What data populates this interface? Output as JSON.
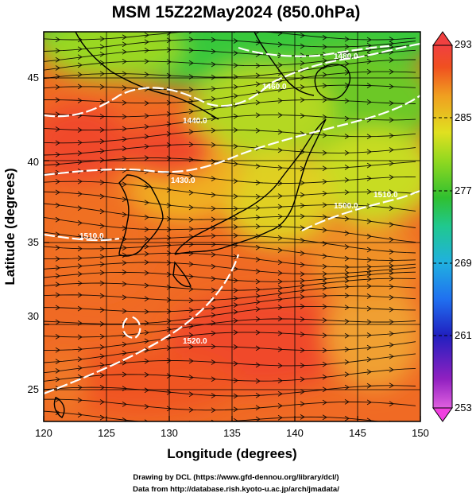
{
  "title": "MSM 15Z22May2024 (850.0hPa)",
  "xlabel": "Longitude (degrees)",
  "ylabel": "Latitude  (degrees)",
  "x_ticks": [
    "120",
    "125",
    "130",
    "135",
    "140",
    "145",
    "150"
  ],
  "y_ticks": [
    "25",
    "30",
    "35",
    "40",
    "45"
  ],
  "colorbar": {
    "ticks": [
      "293",
      "285",
      "277",
      "269",
      "261",
      "253"
    ],
    "min": 253,
    "max": 293,
    "colors": [
      "#e060e0",
      "#9020c0",
      "#2020c0",
      "#2060f0",
      "#20b0e0",
      "#20d0a0",
      "#30c030",
      "#80d020",
      "#d0e020",
      "#f0c020",
      "#f08020",
      "#f04020"
    ]
  },
  "contour_labels": [
    "1480.0",
    "1460.0",
    "1440.0",
    "1430.0",
    "1500.0",
    "1510.0",
    "1520.0",
    "1510.0"
  ],
  "credits": {
    "line1": "Drawing by DCL (https://www.gfd-dennou.org/library/dcl/)",
    "line2": "Data from http://database.rish.kyoto-u.ac.jp/arch/jmadata/"
  },
  "chart_data": {
    "type": "heatmap",
    "title": "MSM 15Z22May2024 (850.0hPa)",
    "xlabel": "Longitude (degrees)",
    "ylabel": "Latitude  (degrees)",
    "xlim": [
      120,
      150
    ],
    "ylim": [
      22.4,
      47.6
    ],
    "field": "temperature (colour) with geopotential height contours (white) and wind streamlines",
    "contour_levels": [
      1430,
      1440,
      1460,
      1480,
      1500,
      1510,
      1520
    ],
    "grid": true
  }
}
